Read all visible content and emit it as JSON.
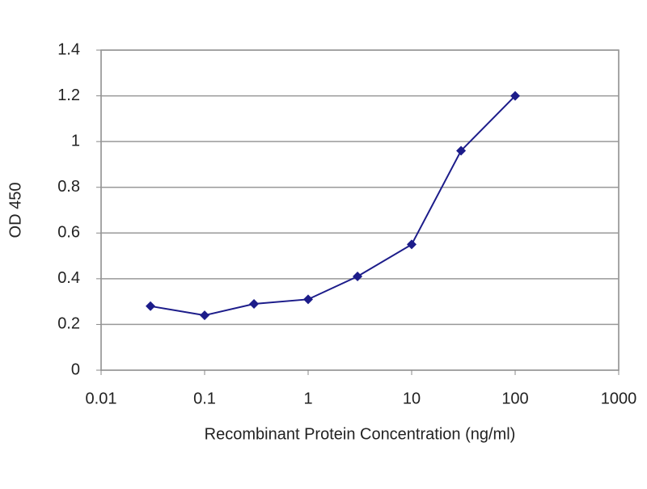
{
  "chart_data": {
    "type": "line",
    "x_label": "Recombinant Protein Concentration (ng/ml)",
    "y_label": "OD 450",
    "x": [
      0.03,
      0.1,
      0.3,
      1,
      3,
      10,
      30,
      100
    ],
    "series": [
      {
        "color": "#1c1c8a",
        "values": [
          0.28,
          0.24,
          0.29,
          0.31,
          0.41,
          0.55,
          0.96,
          1.2
        ]
      }
    ],
    "xscale": "log",
    "xlim": [
      0.01,
      1000
    ],
    "xticks": [
      0.01,
      0.1,
      1,
      10,
      100,
      1000
    ],
    "ylim": [
      0,
      1.4
    ],
    "yticks": [
      0,
      0.2,
      0.4,
      0.6,
      0.8,
      1,
      1.2,
      1.4
    ],
    "grid": true
  }
}
